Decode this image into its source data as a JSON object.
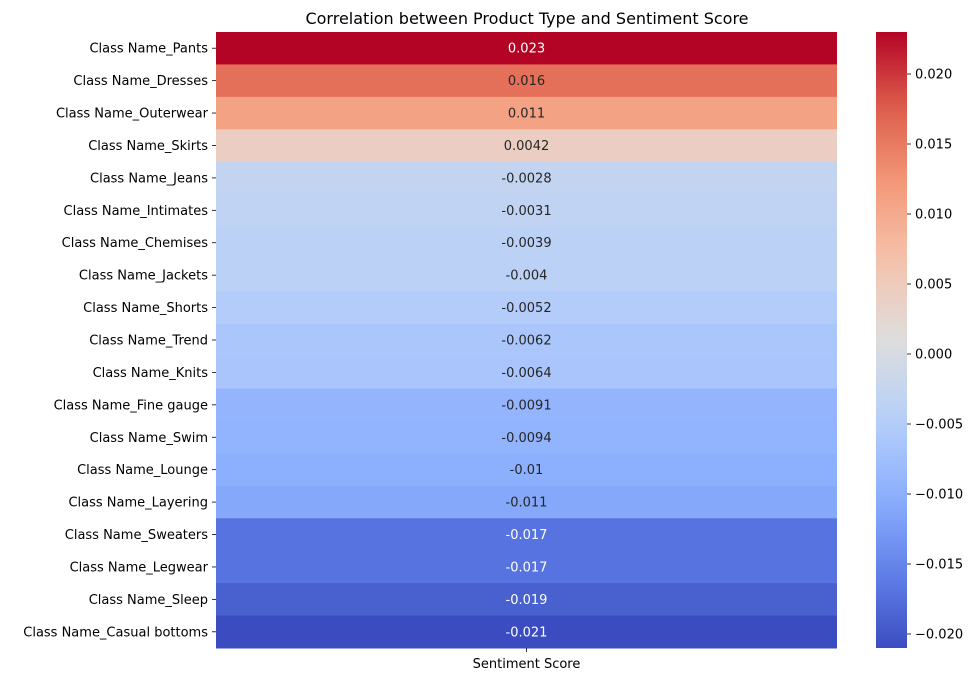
{
  "chart_data": {
    "type": "heatmap",
    "title": "Correlation between Product Type and Sentiment Score",
    "columns": [
      "Sentiment Score"
    ],
    "rows": [
      {
        "label": "Class Name_Pants",
        "value": 0.023,
        "display": "0.023"
      },
      {
        "label": "Class Name_Dresses",
        "value": 0.016,
        "display": "0.016"
      },
      {
        "label": "Class Name_Outerwear",
        "value": 0.011,
        "display": "0.011"
      },
      {
        "label": "Class Name_Skirts",
        "value": 0.0042,
        "display": "0.0042"
      },
      {
        "label": "Class Name_Jeans",
        "value": -0.0028,
        "display": "-0.0028"
      },
      {
        "label": "Class Name_Intimates",
        "value": -0.0031,
        "display": "-0.0031"
      },
      {
        "label": "Class Name_Chemises",
        "value": -0.0039,
        "display": "-0.0039"
      },
      {
        "label": "Class Name_Jackets",
        "value": -0.004,
        "display": "-0.004"
      },
      {
        "label": "Class Name_Shorts",
        "value": -0.0052,
        "display": "-0.0052"
      },
      {
        "label": "Class Name_Trend",
        "value": -0.0062,
        "display": "-0.0062"
      },
      {
        "label": "Class Name_Knits",
        "value": -0.0064,
        "display": "-0.0064"
      },
      {
        "label": "Class Name_Fine gauge",
        "value": -0.0091,
        "display": "-0.0091"
      },
      {
        "label": "Class Name_Swim",
        "value": -0.0094,
        "display": "-0.0094"
      },
      {
        "label": "Class Name_Lounge",
        "value": -0.01,
        "display": "-0.01"
      },
      {
        "label": "Class Name_Layering",
        "value": -0.011,
        "display": "-0.011"
      },
      {
        "label": "Class Name_Sweaters",
        "value": -0.017,
        "display": "-0.017"
      },
      {
        "label": "Class Name_Legwear",
        "value": -0.017,
        "display": "-0.017"
      },
      {
        "label": "Class Name_Sleep",
        "value": -0.019,
        "display": "-0.019"
      },
      {
        "label": "Class Name_Casual bottoms",
        "value": -0.021,
        "display": "-0.021"
      }
    ],
    "colormap": "coolwarm",
    "color_range": [
      -0.021,
      0.023
    ],
    "colorbar_ticks": [
      {
        "value": 0.02,
        "label": "0.020"
      },
      {
        "value": 0.015,
        "label": "0.015"
      },
      {
        "value": 0.01,
        "label": "0.010"
      },
      {
        "value": 0.005,
        "label": "0.005"
      },
      {
        "value": 0.0,
        "label": "0.000"
      },
      {
        "value": -0.005,
        "label": "−0.005"
      },
      {
        "value": -0.01,
        "label": "−0.010"
      },
      {
        "value": -0.015,
        "label": "−0.015"
      },
      {
        "value": -0.02,
        "label": "−0.020"
      }
    ]
  }
}
